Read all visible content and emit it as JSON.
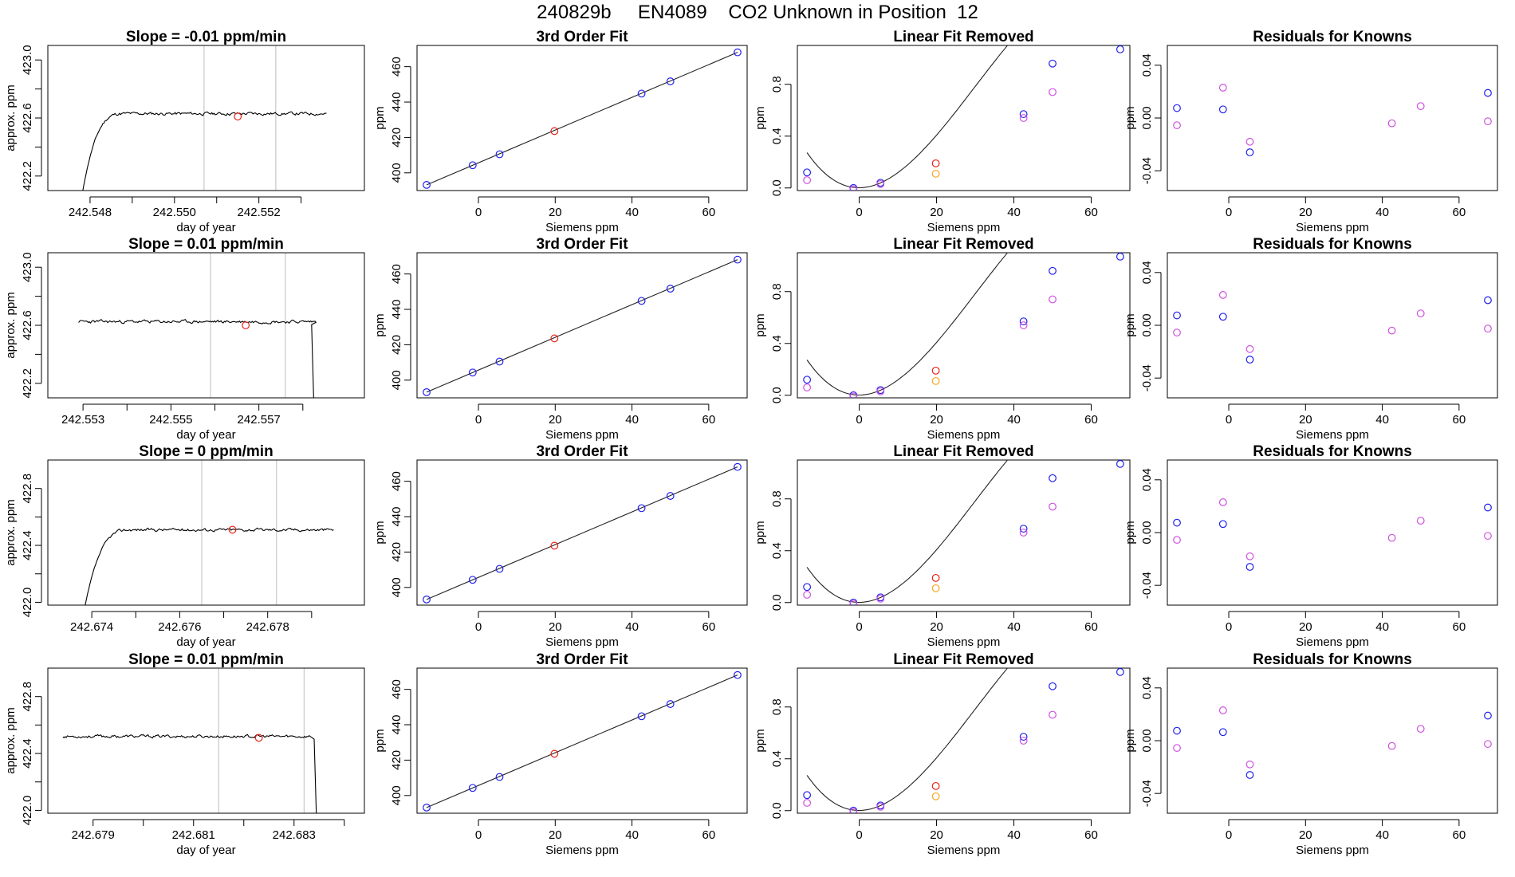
{
  "page": {
    "title": "240829b     EN4089    CO2 Unknown in Position  12"
  },
  "colors": {
    "trace": "#000000",
    "grid_lines": "#c8c8c8",
    "unknown_point": "#e8221b",
    "known_blue": "#2020f0",
    "known_magenta": "#d050e0",
    "alt_orange": "#f5a623"
  },
  "chart_data": [
    {
      "row": 1,
      "type": "line",
      "title": "Slope =  -0.01  ppm/min",
      "xlabel": "day of year",
      "ylabel": "approx. ppm",
      "xlim": [
        242.547,
        242.5545
      ],
      "ylim": [
        422.1,
        423.1
      ],
      "xticks": [
        242.548,
        242.55,
        242.552
      ],
      "xtick_labels": [
        "242.548",
        "242.550",
        "242.552"
      ],
      "xticks_minor": [
        242.549,
        242.551,
        242.553
      ],
      "yticks": [
        422.2,
        422.6,
        423.0
      ],
      "ytick_labels": [
        "422.2",
        "422.6",
        "423.0"
      ],
      "yticks_minor": [
        422.4,
        422.8
      ],
      "vlines": [
        242.5507,
        242.5524
      ],
      "trace": {
        "x_start": 242.5478,
        "x_end": 242.5536,
        "rise_start": 422.05,
        "rise_end_x": 242.5484,
        "plateau": 422.63,
        "noise": 0.008,
        "drop_at": null,
        "drop_to": null,
        "seed": 11
      },
      "highlight": {
        "x": 242.5515,
        "y": 422.61
      }
    },
    {
      "row": 2,
      "type": "line",
      "title": "Slope =  0.01  ppm/min",
      "xlabel": "day of year",
      "ylabel": "approx. ppm",
      "xlim": [
        242.5522,
        242.5594
      ],
      "ylim": [
        422.1,
        423.1
      ],
      "xticks": [
        242.553,
        242.555,
        242.557
      ],
      "xtick_labels": [
        "242.553",
        "242.555",
        "242.557"
      ],
      "xticks_minor": [
        242.554,
        242.556,
        242.558
      ],
      "yticks": [
        422.2,
        422.6,
        423.0
      ],
      "ytick_labels": [
        "422.2",
        "422.6",
        "423.0"
      ],
      "yticks_minor": [
        422.4,
        422.8
      ],
      "vlines": [
        242.5559,
        242.5576
      ],
      "trace": {
        "x_start": 242.5529,
        "x_end": 242.5583,
        "rise_start": null,
        "rise_end_x": null,
        "plateau": 422.625,
        "noise": 0.008,
        "drop_at": 242.5582,
        "drop_to": 422.05,
        "seed": 23
      },
      "highlight": {
        "x": 242.5567,
        "y": 422.6
      }
    },
    {
      "row": 3,
      "type": "line",
      "title": "Slope =  0  ppm/min",
      "xlabel": "day of year",
      "ylabel": "approx. ppm",
      "xlim": [
        242.673,
        242.6802
      ],
      "ylim": [
        421.98,
        423.0
      ],
      "xticks": [
        242.674,
        242.676,
        242.678
      ],
      "xtick_labels": [
        "242.674",
        "242.676",
        "242.678"
      ],
      "xticks_minor": [
        242.675,
        242.677,
        242.679
      ],
      "yticks": [
        422.0,
        422.4,
        422.8
      ],
      "ytick_labels": [
        "422.0",
        "422.4",
        "422.8"
      ],
      "yticks_minor": [
        422.2,
        422.6
      ],
      "vlines": [
        242.6765,
        242.6782
      ],
      "trace": {
        "x_start": 242.6738,
        "x_end": 242.6795,
        "rise_start": 421.9,
        "rise_end_x": 242.6745,
        "plateau": 422.51,
        "noise": 0.008,
        "drop_at": null,
        "drop_to": null,
        "seed": 37
      },
      "highlight": {
        "x": 242.6772,
        "y": 422.51
      }
    },
    {
      "row": 4,
      "type": "line",
      "title": "Slope =  0.01  ppm/min",
      "xlabel": "day of year",
      "ylabel": "approx. ppm",
      "xlim": [
        242.6781,
        242.6844
      ],
      "ylim": [
        421.98,
        423.0
      ],
      "xticks": [
        242.679,
        242.681,
        242.683
      ],
      "xtick_labels": [
        "242.679",
        "242.681",
        "242.683"
      ],
      "xticks_minor": [
        242.68,
        242.682,
        242.684
      ],
      "yticks": [
        422.0,
        422.4,
        422.8
      ],
      "ytick_labels": [
        "422.0",
        "422.4",
        "422.8"
      ],
      "yticks_minor": [
        422.2,
        422.6
      ],
      "vlines": [
        242.6815,
        242.6832
      ],
      "trace": {
        "x_start": 242.6784,
        "x_end": 242.6833,
        "rise_start": null,
        "rise_end_x": null,
        "plateau": 422.52,
        "noise": 0.008,
        "drop_at": 242.6834,
        "drop_to": 421.9,
        "seed": 53
      },
      "highlight": {
        "x": 242.6823,
        "y": 422.51
      }
    },
    {
      "type": "scatter",
      "title": "3rd Order Fit",
      "xlabel": "Siemens ppm",
      "ylabel": "ppm",
      "xlim": [
        -16,
        70
      ],
      "ylim": [
        390,
        472
      ],
      "xticks": [
        0,
        20,
        40,
        60
      ],
      "xtick_labels": [
        "0",
        "20",
        "40",
        "60"
      ],
      "yticks": [
        400,
        420,
        440,
        460
      ],
      "ytick_labels": [
        "400",
        "420",
        "440",
        "460"
      ],
      "fit_line": [
        [
          -13.5,
          393.2
        ],
        [
          67.5,
          468.1
        ]
      ],
      "points": [
        {
          "x": -13.5,
          "y": 393.2,
          "c": "known_blue"
        },
        {
          "x": -1.5,
          "y": 404.3,
          "c": "known_blue"
        },
        {
          "x": 5.5,
          "y": 410.5,
          "c": "known_blue"
        },
        {
          "x": 19.8,
          "y": 423.6,
          "c": "unknown_point"
        },
        {
          "x": 42.5,
          "y": 444.8,
          "c": "known_blue"
        },
        {
          "x": 50.0,
          "y": 451.7,
          "c": "known_blue"
        },
        {
          "x": 67.5,
          "y": 468.1,
          "c": "known_blue"
        }
      ]
    },
    {
      "type": "scatter",
      "title": "Linear Fit Removed",
      "xlabel": "Siemens ppm",
      "ylabel": "ppm",
      "xlim": [
        -16,
        70
      ],
      "ylim": [
        -0.02,
        1.1
      ],
      "xticks": [
        0,
        20,
        40,
        60
      ],
      "xtick_labels": [
        "0",
        "20",
        "40",
        "60"
      ],
      "yticks": [
        0.0,
        0.4,
        0.8
      ],
      "ytick_labels": [
        "0.0",
        "0.4",
        "0.8"
      ],
      "curve_poly": [
        0.0015,
        0.00012,
        0.0013,
        -1.45e-05
      ],
      "curve_range": [
        -13.5,
        67.5
      ],
      "points": [
        {
          "x": -13.5,
          "y": 0.12,
          "c": "known_blue"
        },
        {
          "x": -13.5,
          "y": 0.06,
          "c": "known_magenta"
        },
        {
          "x": -1.5,
          "y": 0.0,
          "c": "known_blue"
        },
        {
          "x": -1.5,
          "y": -0.01,
          "c": "known_magenta"
        },
        {
          "x": 5.5,
          "y": 0.04,
          "c": "known_blue"
        },
        {
          "x": 5.5,
          "y": 0.03,
          "c": "known_magenta"
        },
        {
          "x": 19.8,
          "y": 0.19,
          "c": "unknown_point"
        },
        {
          "x": 19.8,
          "y": 0.11,
          "c": "alt_orange"
        },
        {
          "x": 42.5,
          "y": 0.57,
          "c": "known_blue"
        },
        {
          "x": 42.5,
          "y": 0.54,
          "c": "known_magenta"
        },
        {
          "x": 50.0,
          "y": 0.96,
          "c": "known_blue"
        },
        {
          "x": 50.0,
          "y": 0.74,
          "c": "known_magenta"
        },
        {
          "x": 67.5,
          "y": 1.07,
          "c": "known_blue"
        }
      ]
    },
    {
      "type": "scatter",
      "title": "Residuals for Knowns",
      "xlabel": "Siemens ppm",
      "ylabel": "ppm",
      "xlim": [
        -16,
        70
      ],
      "ylim": [
        -0.055,
        0.055
      ],
      "xticks": [
        0,
        20,
        40,
        60
      ],
      "xtick_labels": [
        "0",
        "20",
        "40",
        "60"
      ],
      "yticks": [
        -0.04,
        0.0,
        0.04
      ],
      "ytick_labels": [
        "-0.04",
        "0.00",
        "0.04"
      ],
      "points": [
        {
          "x": -13.5,
          "y": 0.0075,
          "c": "known_blue"
        },
        {
          "x": -13.5,
          "y": -0.0055,
          "c": "known_magenta"
        },
        {
          "x": -1.5,
          "y": 0.0065,
          "c": "known_blue"
        },
        {
          "x": -1.5,
          "y": 0.023,
          "c": "known_magenta"
        },
        {
          "x": 5.5,
          "y": -0.026,
          "c": "known_blue"
        },
        {
          "x": 5.5,
          "y": -0.018,
          "c": "known_magenta"
        },
        {
          "x": 42.5,
          "y": -0.004,
          "c": "known_magenta"
        },
        {
          "x": 50.0,
          "y": 0.009,
          "c": "known_magenta"
        },
        {
          "x": 67.5,
          "y": 0.019,
          "c": "known_blue"
        },
        {
          "x": 67.5,
          "y": -0.0025,
          "c": "known_magenta"
        }
      ]
    }
  ]
}
